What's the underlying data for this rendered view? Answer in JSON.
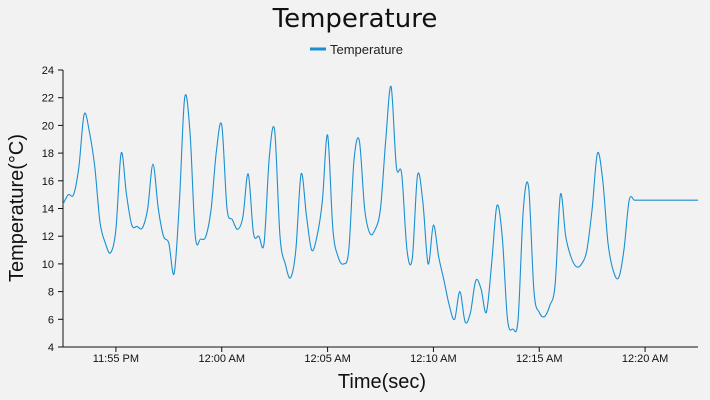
{
  "chart_data": {
    "type": "line",
    "title": "Temperature",
    "xlabel": "Time(sec)",
    "ylabel": "Temperature(°C)",
    "legend": {
      "position": "top-center",
      "entries": [
        "Temperature"
      ]
    },
    "grid": false,
    "color": "#1a8fd1",
    "xlim": [
      "11:52:30 PM",
      "12:22:30 AM"
    ],
    "ylim": [
      4,
      24
    ],
    "x_ticks": [
      "11:55 PM",
      "12:00 AM",
      "12:05 AM",
      "12:10 AM",
      "12:15 AM",
      "12:20 AM"
    ],
    "y_ticks": [
      4,
      6,
      8,
      10,
      12,
      14,
      16,
      18,
      20,
      22,
      24
    ],
    "series": [
      {
        "name": "Temperature",
        "x": [
          "11:52:30 PM",
          "11:52:45 PM",
          "11:53:00 PM",
          "11:53:15 PM",
          "11:53:30 PM",
          "11:53:45 PM",
          "11:54:00 PM",
          "11:54:15 PM",
          "11:54:30 PM",
          "11:54:45 PM",
          "11:55:00 PM",
          "11:55:15 PM",
          "11:55:30 PM",
          "11:55:45 PM",
          "11:56:00 PM",
          "11:56:15 PM",
          "11:56:30 PM",
          "11:56:45 PM",
          "11:57:00 PM",
          "11:57:15 PM",
          "11:57:30 PM",
          "11:57:45 PM",
          "11:58:00 PM",
          "11:58:15 PM",
          "11:58:30 PM",
          "11:58:45 PM",
          "11:59:00 PM",
          "11:59:15 PM",
          "11:59:30 PM",
          "11:59:45 PM",
          "12:00:00 AM",
          "12:00:15 AM",
          "12:00:30 AM",
          "12:00:45 AM",
          "12:01:00 AM",
          "12:01:15 AM",
          "12:01:30 AM",
          "12:01:45 AM",
          "12:02:00 AM",
          "12:02:15 AM",
          "12:02:30 AM",
          "12:02:45 AM",
          "12:03:00 AM",
          "12:03:15 AM",
          "12:03:30 AM",
          "12:03:45 AM",
          "12:04:00 AM",
          "12:04:15 AM",
          "12:04:30 AM",
          "12:04:45 AM",
          "12:05:00 AM",
          "12:05:15 AM",
          "12:05:30 AM",
          "12:05:45 AM",
          "12:06:00 AM",
          "12:06:15 AM",
          "12:06:30 AM",
          "12:06:45 AM",
          "12:07:00 AM",
          "12:07:15 AM",
          "12:07:30 AM",
          "12:07:45 AM",
          "12:08:00 AM",
          "12:08:15 AM",
          "12:08:30 AM",
          "12:08:45 AM",
          "12:09:00 AM",
          "12:09:15 AM",
          "12:09:30 AM",
          "12:09:45 AM",
          "12:10:00 AM",
          "12:10:15 AM",
          "12:10:30 AM",
          "12:10:45 AM",
          "12:11:00 AM",
          "12:11:15 AM",
          "12:11:30 AM",
          "12:11:45 AM",
          "12:12:00 AM",
          "12:12:15 AM",
          "12:12:30 AM",
          "12:12:45 AM",
          "12:13:00 AM",
          "12:13:15 AM",
          "12:13:30 AM",
          "12:13:45 AM",
          "12:14:00 AM",
          "12:14:15 AM",
          "12:14:30 AM",
          "12:14:45 AM",
          "12:15:00 AM",
          "12:15:15 AM",
          "12:15:30 AM",
          "12:15:45 AM",
          "12:16:00 AM",
          "12:16:15 AM",
          "12:16:30 AM",
          "12:16:45 AM",
          "12:17:00 AM",
          "12:17:15 AM",
          "12:17:30 AM",
          "12:17:45 AM",
          "12:18:00 AM",
          "12:18:15 AM",
          "12:18:30 AM",
          "12:18:45 AM",
          "12:19:00 AM",
          "12:19:15 AM",
          "12:19:30 AM",
          "12:19:45 AM",
          "12:20:00 AM",
          "12:20:15 AM",
          "12:20:30 AM",
          "12:20:45 AM",
          "12:21:00 AM",
          "12:21:15 AM",
          "12:21:30 AM",
          "12:21:45 AM",
          "12:22:00 AM",
          "12:22:15 AM",
          "12:22:30 AM"
        ],
        "values": [
          14.3,
          15.0,
          15.0,
          17.0,
          20.8,
          19.5,
          17.0,
          13.0,
          11.5,
          10.8,
          12.5,
          18.0,
          15.0,
          12.8,
          12.7,
          12.6,
          14.0,
          17.2,
          14.0,
          12.0,
          11.5,
          9.3,
          14.5,
          22.0,
          19.5,
          12.0,
          11.8,
          12.0,
          14.0,
          18.2,
          20.0,
          14.0,
          13.2,
          12.5,
          13.4,
          16.5,
          12.2,
          12.0,
          11.5,
          17.8,
          19.6,
          12.0,
          10.0,
          9.0,
          11.0,
          16.5,
          13.5,
          11.0,
          12.0,
          14.5,
          19.3,
          12.5,
          10.5,
          10.0,
          11.0,
          17.5,
          18.9,
          14.0,
          12.2,
          12.5,
          14.0,
          19.0,
          22.8,
          17.0,
          16.5,
          11.0,
          10.4,
          16.4,
          14.5,
          10.0,
          12.8,
          10.5,
          8.8,
          7.0,
          6.0,
          8.0,
          5.8,
          6.5,
          8.8,
          8.2,
          6.5,
          10.0,
          14.2,
          12.0,
          6.0,
          5.3,
          6.0,
          14.0,
          15.5,
          8.0,
          6.5,
          6.2,
          7.0,
          8.5,
          15.0,
          12.0,
          10.5,
          9.8,
          10.0,
          11.0,
          14.0,
          18.0,
          16.0,
          11.5,
          9.5,
          9.0,
          11.0,
          14.6,
          14.6,
          14.6,
          14.6,
          14.6,
          14.6,
          14.6,
          14.6,
          14.6,
          14.6,
          14.6,
          14.6,
          14.6,
          14.6
        ]
      }
    ]
  }
}
